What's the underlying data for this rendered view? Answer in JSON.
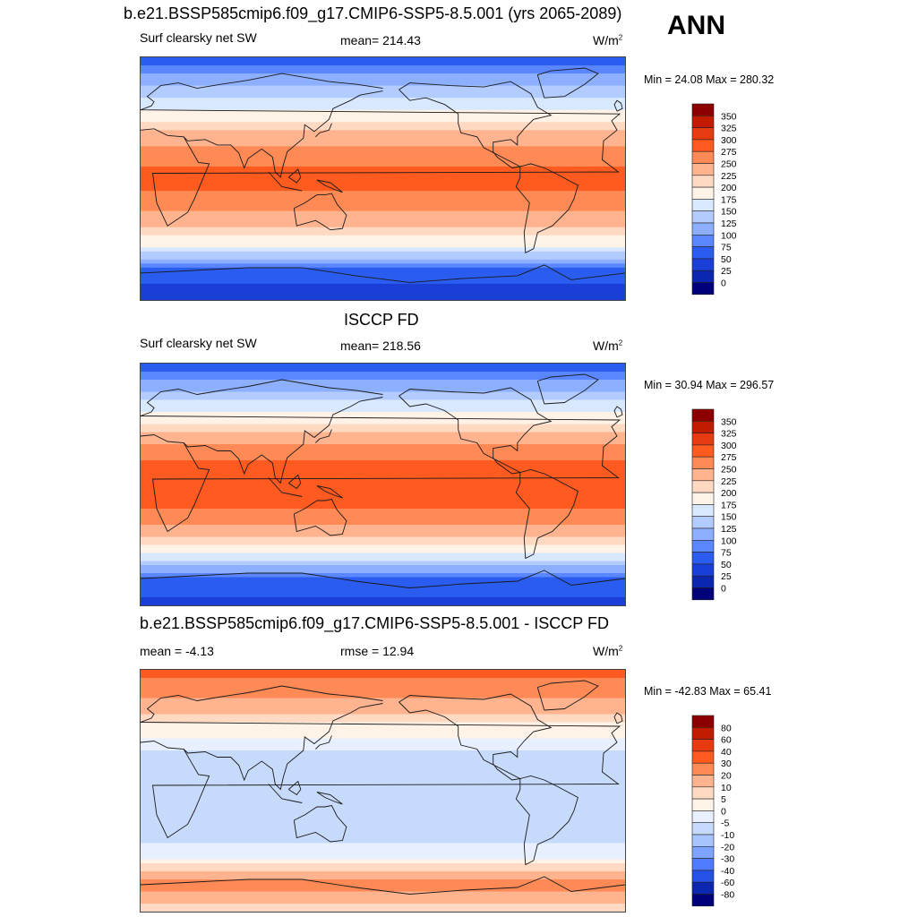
{
  "figure": {
    "top_title": "b.e21.BSSP585cmip6.f09_g17.CMIP6-SSP5-8.5.001 (yrs 2065-2089)",
    "season": "ANN"
  },
  "panels": [
    {
      "variable_label": "Surf clearsky net SW",
      "center_label": "mean= 214.43",
      "units_base": "W/m",
      "units_sup": "2",
      "minmax": "Min =  24.08 Max = 280.32"
    },
    {
      "header": "ISCCP FD",
      "variable_label": "Surf clearsky net SW",
      "center_label": "mean= 218.56",
      "units_base": "W/m",
      "units_sup": "2",
      "minmax": "Min =  30.94 Max = 296.57"
    },
    {
      "header": "b.e21.BSSP585cmip6.f09_g17.CMIP6-SSP5-8.5.001 - ISCCP FD",
      "variable_label": "mean =  -4.13",
      "center_label": "rmse =  12.94",
      "units_base": "W/m",
      "units_sup": "2",
      "minmax": "Min = -42.83 Max =  65.41"
    }
  ],
  "chart_data": [
    {
      "type": "heatmap",
      "projection": "cylindrical equidistant, 0-360 longitude",
      "colorbar": {
        "levels": [
          "350",
          "325",
          "300",
          "275",
          "250",
          "225",
          "200",
          "175",
          "150",
          "125",
          "100",
          "75",
          "50",
          "25",
          "0"
        ],
        "colors": [
          "#8c0000",
          "#c21b00",
          "#e83a10",
          "#ff5a1f",
          "#ff8a55",
          "#ffb38f",
          "#ffd9c2",
          "#fff2e6",
          "#d8e8ff",
          "#b3ccff",
          "#8cb0ff",
          "#5a86ff",
          "#2a5cf0",
          "#1a3fd6",
          "#0b27b0",
          "#00007a"
        ]
      },
      "zonal_profile_wm2": {
        "lat": [
          90,
          70,
          50,
          30,
          10,
          -10,
          -30,
          -50,
          -70,
          -90
        ],
        "value": [
          60,
          120,
          175,
          240,
          275,
          275,
          240,
          175,
          60,
          30
        ]
      },
      "stats": {
        "mean": 214.43,
        "min": 24.08,
        "max": 280.32
      }
    },
    {
      "type": "heatmap",
      "projection": "cylindrical equidistant, 0-360 longitude",
      "colorbar": {
        "levels": [
          "350",
          "325",
          "300",
          "275",
          "250",
          "225",
          "200",
          "175",
          "150",
          "125",
          "100",
          "75",
          "50",
          "25",
          "0"
        ],
        "colors": [
          "#8c0000",
          "#c21b00",
          "#e83a10",
          "#ff5a1f",
          "#ff8a55",
          "#ffb38f",
          "#ffd9c2",
          "#fff2e6",
          "#d8e8ff",
          "#b3ccff",
          "#8cb0ff",
          "#5a86ff",
          "#2a5cf0",
          "#1a3fd6",
          "#0b27b0",
          "#00007a"
        ]
      },
      "zonal_profile_wm2": {
        "lat": [
          90,
          70,
          50,
          30,
          10,
          -10,
          -30,
          -50,
          -70,
          -90
        ],
        "value": [
          60,
          125,
          185,
          255,
          290,
          290,
          255,
          185,
          70,
          40
        ]
      },
      "stats": {
        "mean": 218.56,
        "min": 30.94,
        "max": 296.57
      }
    },
    {
      "type": "heatmap",
      "projection": "cylindrical equidistant, 0-360 longitude",
      "colorbar": {
        "levels": [
          "80",
          "60",
          "40",
          "30",
          "20",
          "10",
          "5",
          "0",
          "-5",
          "-10",
          "-20",
          "-30",
          "-40",
          "-60",
          "-80"
        ],
        "colors": [
          "#8c0000",
          "#c21b00",
          "#e83a10",
          "#ff5a1f",
          "#ff8a55",
          "#ffb38f",
          "#ffd9c2",
          "#fff2e6",
          "#e8f0ff",
          "#c6dafc",
          "#a8c4ff",
          "#7ea4ff",
          "#4f7cff",
          "#2451e6",
          "#0b27b0",
          "#00007a"
        ]
      },
      "zonal_profile_wm2": {
        "lat": [
          90,
          70,
          50,
          30,
          10,
          -10,
          -30,
          -50,
          -70,
          -90
        ],
        "value": [
          35,
          20,
          5,
          -5,
          -10,
          -10,
          -8,
          -2,
          25,
          5
        ]
      },
      "stats": {
        "mean": -4.13,
        "rmse": 12.94,
        "min": -42.83,
        "max": 65.41
      }
    }
  ]
}
